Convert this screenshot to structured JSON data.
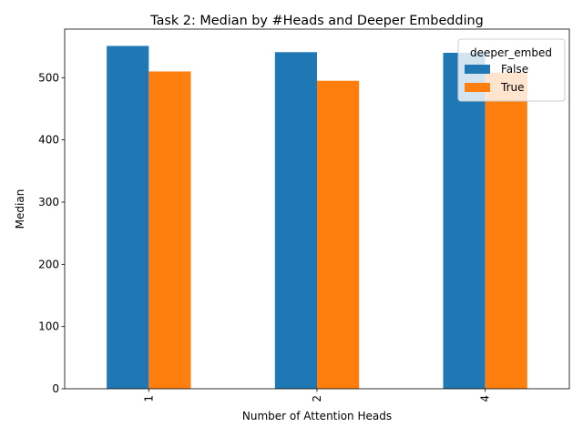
{
  "chart_data": {
    "type": "bar",
    "title": "Task 2: Median by #Heads and Deeper Embedding",
    "xlabel": "Number of Attention Heads",
    "ylabel": "Median",
    "categories": [
      "1",
      "2",
      "4"
    ],
    "ylim": [
      0,
      578
    ],
    "yticks": [
      0,
      100,
      200,
      300,
      400,
      500
    ],
    "grid": false,
    "legend": {
      "title": "deeper_embed",
      "placement": "top-right"
    },
    "series": [
      {
        "name": "False",
        "color": "#1f77b4",
        "values": [
          551,
          541,
          540
        ]
      },
      {
        "name": "True",
        "color": "#ff7f0e",
        "values": [
          510,
          495,
          508
        ]
      }
    ]
  }
}
